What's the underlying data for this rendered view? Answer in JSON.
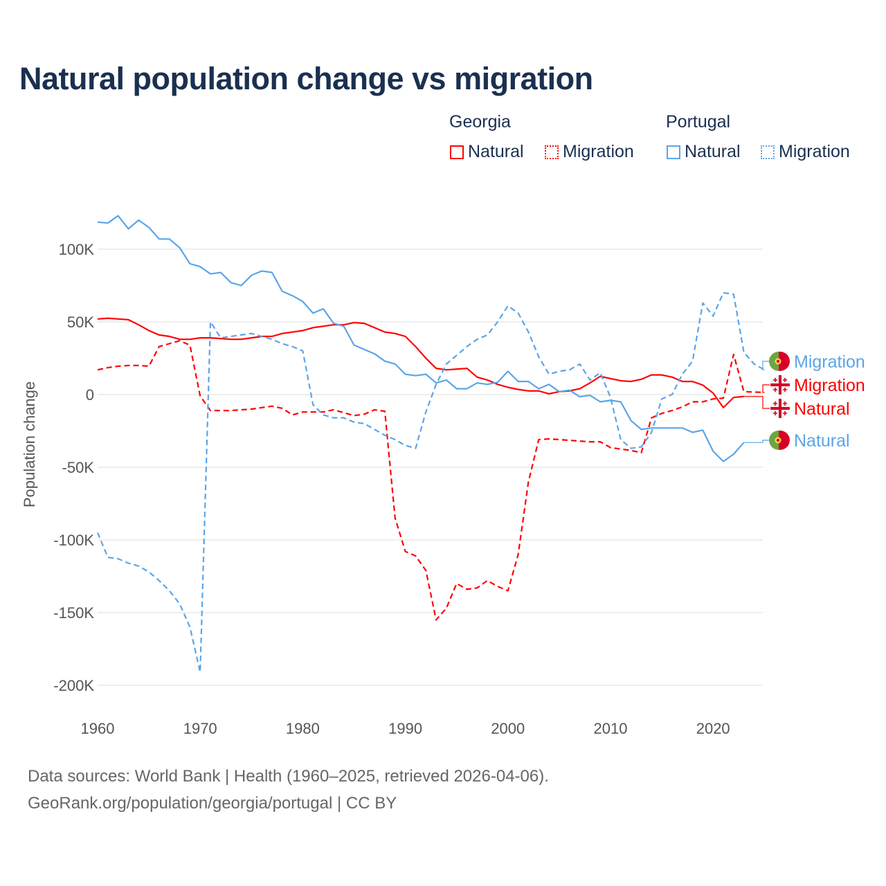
{
  "title": "Natural population change vs migration",
  "legend": {
    "groups": [
      {
        "name": "Georgia",
        "items": [
          {
            "label": "Natural",
            "style": "solid"
          },
          {
            "label": "Migration",
            "style": "dotted"
          }
        ],
        "color": "#ff0000"
      },
      {
        "name": "Portugal",
        "items": [
          {
            "label": "Natural",
            "style": "solid"
          },
          {
            "label": "Migration",
            "style": "dotted"
          }
        ],
        "color": "#5aa5e8"
      }
    ]
  },
  "footer": {
    "line1": "Data sources: World Bank | Health (1960–2025, retrieved 2026-04-06).",
    "line2": "GeoRank.org/population/georgia/portugal | CC BY"
  },
  "chart_data": {
    "type": "line",
    "title": "Natural population change vs migration",
    "xlabel": "",
    "ylabel": "Population change",
    "xlim": [
      1960,
      2025
    ],
    "ylim": [
      -200000,
      100000
    ],
    "x_ticks": [
      1960,
      1970,
      1980,
      1990,
      2000,
      2010,
      2020
    ],
    "x_tick_labels": [
      "1960",
      "1970",
      "1980",
      "1990",
      "2000",
      "2010",
      "2020"
    ],
    "y_ticks": [
      100000,
      50000,
      0,
      -50000,
      -100000,
      -150000,
      -200000
    ],
    "y_tick_labels": [
      "100K",
      "50K",
      "0",
      "-50K",
      "-100K",
      "-150K",
      "-200K"
    ],
    "grid": true,
    "series": [
      {
        "name": "Georgia Natural",
        "end_label": "Natural",
        "country": "georgia",
        "color": "#ff0000",
        "dash": "solid",
        "start_year": 1960,
        "unit": "thousands",
        "values": [
          52,
          52.5,
          52,
          51.5,
          48,
          44,
          41,
          40,
          38,
          38,
          39,
          39,
          38.5,
          38,
          38,
          39,
          40,
          40,
          42,
          43,
          44,
          46,
          47,
          48,
          48,
          49.5,
          49,
          46,
          43,
          42,
          40,
          33,
          25,
          18,
          17,
          17.5,
          18,
          12,
          10,
          7,
          5,
          3.5,
          2.5,
          2.5,
          0.5,
          2,
          2.5,
          4,
          8,
          12.5,
          11,
          9.5,
          9,
          10.5,
          13.5,
          13.5,
          12,
          9,
          9,
          6.5,
          1,
          -9,
          -2,
          -1.3
        ]
      },
      {
        "name": "Georgia Migration",
        "end_label": "Migration",
        "country": "georgia",
        "color": "#ff0000",
        "dash": "dashed",
        "start_year": 1960,
        "unit": "thousands",
        "values": [
          17,
          18.5,
          19.5,
          20,
          20,
          19.5,
          33,
          35,
          37,
          34,
          -1,
          -11,
          -11,
          -11,
          -10.5,
          -10,
          -9,
          -8,
          -9.5,
          -14,
          -12,
          -12,
          -12,
          -10.5,
          -12.5,
          -14.5,
          -13.5,
          -10.5,
          -11.5,
          -85,
          -108,
          -111,
          -121,
          -155,
          -147,
          -130,
          -134,
          -133,
          -128,
          -132,
          -135,
          -110,
          -60,
          -31,
          -30.5,
          -31,
          -31.5,
          -32,
          -32.5,
          -32.5,
          -36.5,
          -37.5,
          -38.5,
          -40,
          -16,
          -13,
          -11,
          -8.5,
          -5,
          -5,
          -3,
          -2.5,
          27.6,
          2,
          1.7,
          1.5
        ]
      },
      {
        "name": "Portugal Natural",
        "end_label": "Natural",
        "country": "portugal",
        "color": "#5aa5e8",
        "dash": "solid",
        "start_year": 1960,
        "unit": "thousands",
        "values": [
          118.6,
          118,
          123,
          114,
          120,
          115,
          107,
          107,
          101,
          90,
          88,
          83,
          84,
          77,
          75,
          82,
          85,
          84,
          71,
          68,
          64,
          56,
          59,
          49,
          47,
          34,
          31,
          28,
          23,
          21,
          14,
          13,
          14,
          8,
          10,
          4,
          4,
          8,
          7,
          8.5,
          16,
          9,
          9,
          4,
          7,
          2,
          3,
          -1.5,
          -0.5,
          -5,
          -4,
          -5,
          -18,
          -24,
          -23,
          -23,
          -23,
          -23,
          -26,
          -24.5,
          -39,
          -46,
          -41,
          -33
        ]
      },
      {
        "name": "Portugal Migration",
        "end_label": "Migration",
        "country": "portugal",
        "color": "#5aa5e8",
        "dash": "dashed",
        "start_year": 1960,
        "unit": "thousands",
        "values": [
          -95,
          -112,
          -113,
          -116,
          -118,
          -122,
          -128,
          -135,
          -144,
          -160,
          -191,
          50,
          39,
          40,
          41,
          42,
          40,
          38,
          35,
          33,
          30,
          -7,
          -14,
          -16,
          -16,
          -19,
          -20,
          -24,
          -28,
          -31,
          -35,
          -37,
          -12,
          7,
          21,
          27,
          33,
          38,
          41,
          50,
          61,
          56,
          43,
          26,
          14,
          16,
          17,
          21,
          10,
          15,
          -2,
          -31,
          -37,
          -36,
          -26,
          -3,
          0,
          14,
          23,
          63,
          54,
          70,
          69,
          29,
          21,
          17
        ]
      }
    ]
  }
}
